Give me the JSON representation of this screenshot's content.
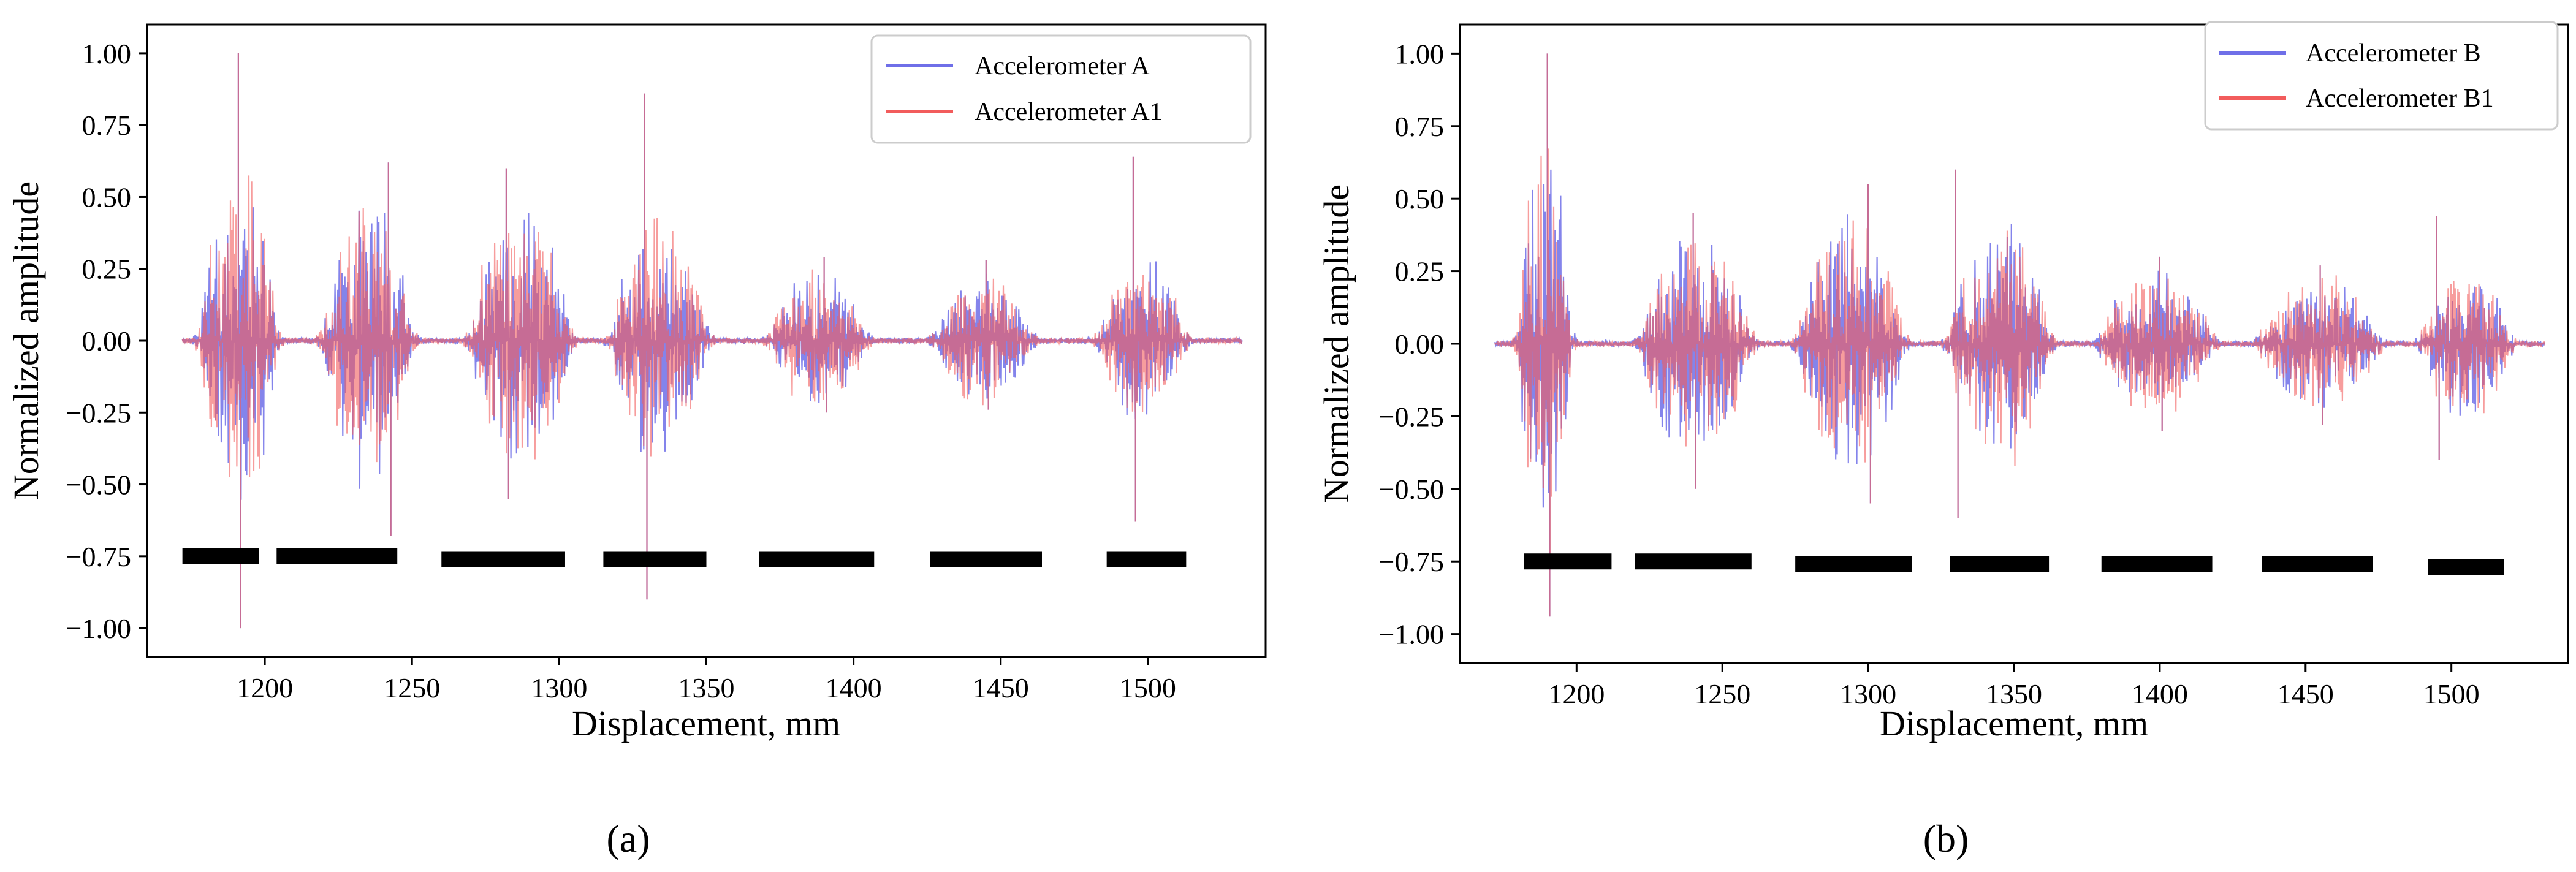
{
  "figure": {
    "captions": [
      "(a)",
      "(b)"
    ]
  },
  "colors": {
    "series_a": "#6f6fe8",
    "series_b": "#f25c5c",
    "overlap": "#b6367d",
    "marker": "#000000"
  },
  "chart_data": [
    {
      "type": "line",
      "title": "",
      "xlabel": "Displacement, mm",
      "ylabel": "Normalized amplitude",
      "xlim": [
        1160,
        1540
      ],
      "ylim": [
        -1.1,
        1.1
      ],
      "xticks": [
        1200,
        1250,
        1300,
        1350,
        1400,
        1450,
        1500
      ],
      "xtick_labels": [
        "1200",
        "1250",
        "1300",
        "1350",
        "1400",
        "1450",
        "1500"
      ],
      "yticks": [
        1.0,
        0.75,
        0.5,
        0.25,
        0.0,
        -0.25,
        -0.5,
        -0.75,
        -1.0
      ],
      "ytick_labels": [
        "1.00",
        "0.75",
        "0.50",
        "0.25",
        "0.00",
        "−0.25",
        "−0.50",
        "−0.75",
        "−1.00"
      ],
      "legend_position": "top-right",
      "series": [
        {
          "name": "Accelerometer A",
          "color": "#6f6fe8"
        },
        {
          "name": "Accelerometer A1",
          "color": "#f25c5c"
        }
      ],
      "x_range": [
        1172,
        1532
      ],
      "bursts": [
        {
          "x0": 1178,
          "x1": 1204,
          "amp": 0.62,
          "peak_x": 1191,
          "peak": 1.0,
          "trough": -1.0
        },
        {
          "x0": 1220,
          "x1": 1250,
          "amp": 0.55,
          "peak_x": 1242,
          "peak": 0.62,
          "trough": -0.68
        },
        {
          "x0": 1270,
          "x1": 1304,
          "amp": 0.5,
          "peak_x": 1282,
          "peak": 0.6,
          "trough": -0.55
        },
        {
          "x0": 1318,
          "x1": 1350,
          "amp": 0.45,
          "peak_x": 1329,
          "peak": 0.86,
          "trough": -0.9
        },
        {
          "x0": 1372,
          "x1": 1404,
          "amp": 0.27,
          "peak_x": 1390,
          "peak": 0.29,
          "trough": -0.25
        },
        {
          "x0": 1428,
          "x1": 1460,
          "amp": 0.24,
          "peak_x": 1445,
          "peak": 0.28,
          "trough": -0.24
        },
        {
          "x0": 1484,
          "x1": 1512,
          "amp": 0.32,
          "peak_x": 1495,
          "peak": 0.64,
          "trough": -0.63
        }
      ],
      "marker_bars": [
        {
          "x0": 1172,
          "x1": 1198,
          "y": -0.75
        },
        {
          "x0": 1204,
          "x1": 1245,
          "y": -0.75
        },
        {
          "x0": 1260,
          "x1": 1302,
          "y": -0.76
        },
        {
          "x0": 1315,
          "x1": 1350,
          "y": -0.76
        },
        {
          "x0": 1368,
          "x1": 1407,
          "y": -0.76
        },
        {
          "x0": 1426,
          "x1": 1464,
          "y": -0.76
        },
        {
          "x0": 1486,
          "x1": 1513,
          "y": -0.76
        }
      ]
    },
    {
      "type": "line",
      "title": "",
      "xlabel": "Displacement, mm",
      "ylabel": "Normalized amplitude",
      "xlim": [
        1160,
        1540
      ],
      "ylim": [
        -1.1,
        1.1
      ],
      "xticks": [
        1200,
        1250,
        1300,
        1350,
        1400,
        1450,
        1500
      ],
      "xtick_labels": [
        "1200",
        "1250",
        "1300",
        "1350",
        "1400",
        "1450",
        "1500"
      ],
      "yticks": [
        1.0,
        0.75,
        0.5,
        0.25,
        0.0,
        -0.25,
        -0.5,
        -0.75,
        -1.0
      ],
      "ytick_labels": [
        "1.00",
        "0.75",
        "0.50",
        "0.25",
        "0.00",
        "−0.25",
        "−0.50",
        "−0.75",
        "−1.00"
      ],
      "legend_position": "top-right",
      "series": [
        {
          "name": "Accelerometer B",
          "color": "#6f6fe8"
        },
        {
          "name": "Accelerometer B1",
          "color": "#f25c5c"
        }
      ],
      "x_range": [
        1172,
        1532
      ],
      "bursts": [
        {
          "x0": 1180,
          "x1": 1198,
          "amp": 0.75,
          "peak_x": 1190,
          "peak": 1.0,
          "trough": -0.94
        },
        {
          "x0": 1222,
          "x1": 1260,
          "amp": 0.42,
          "peak_x": 1240,
          "peak": 0.45,
          "trough": -0.5
        },
        {
          "x0": 1276,
          "x1": 1312,
          "amp": 0.48,
          "peak_x": 1300,
          "peak": 0.55,
          "trough": -0.55
        },
        {
          "x0": 1328,
          "x1": 1362,
          "amp": 0.45,
          "peak_x": 1330,
          "peak": 0.6,
          "trough": -0.6
        },
        {
          "x0": 1380,
          "x1": 1418,
          "amp": 0.28,
          "peak_x": 1400,
          "peak": 0.3,
          "trough": -0.3
        },
        {
          "x0": 1435,
          "x1": 1475,
          "amp": 0.25,
          "peak_x": 1455,
          "peak": 0.27,
          "trough": -0.28
        },
        {
          "x0": 1490,
          "x1": 1520,
          "amp": 0.3,
          "peak_x": 1495,
          "peak": 0.44,
          "trough": -0.4
        }
      ],
      "marker_bars": [
        {
          "x0": 1182,
          "x1": 1212,
          "y": -0.75
        },
        {
          "x0": 1220,
          "x1": 1260,
          "y": -0.75
        },
        {
          "x0": 1275,
          "x1": 1315,
          "y": -0.76
        },
        {
          "x0": 1328,
          "x1": 1362,
          "y": -0.76
        },
        {
          "x0": 1380,
          "x1": 1418,
          "y": -0.76
        },
        {
          "x0": 1435,
          "x1": 1473,
          "y": -0.76
        },
        {
          "x0": 1492,
          "x1": 1518,
          "y": -0.77
        }
      ]
    }
  ]
}
